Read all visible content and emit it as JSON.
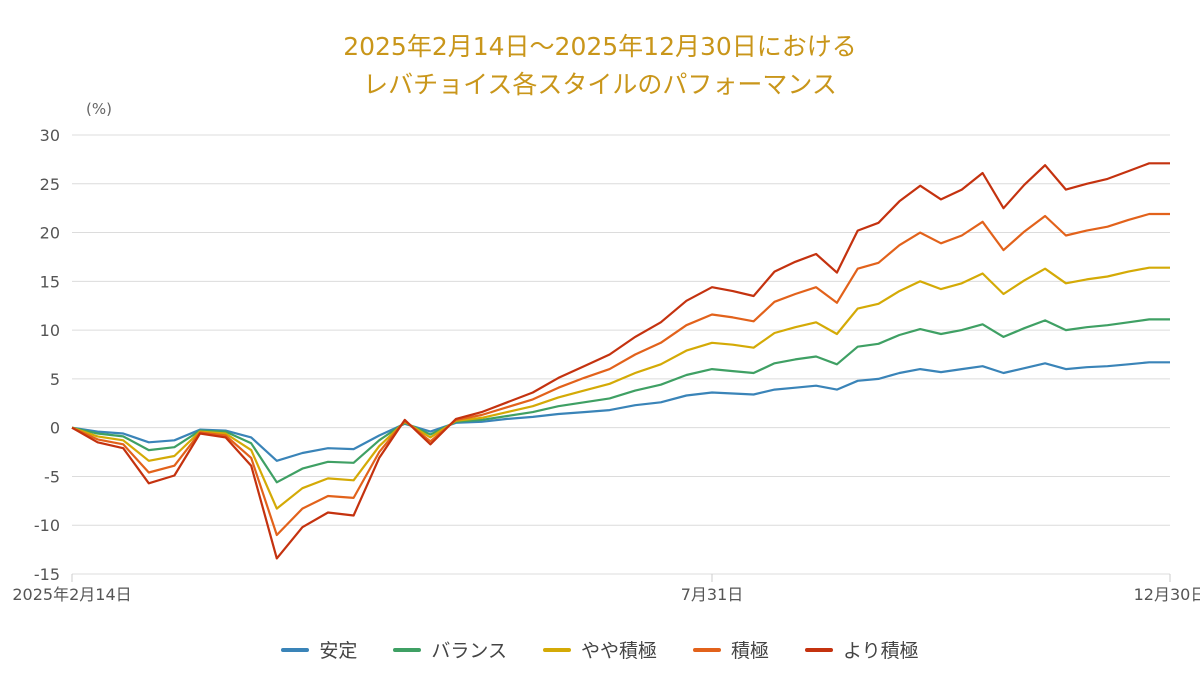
{
  "title": {
    "line1": "2025年2月14日〜2025年12月30日における",
    "line2": "レバチョイス各スタイルのパフォーマンス"
  },
  "chart_data": {
    "type": "line",
    "title": "2025年2月14日〜2025年12月30日における レバチョイス各スタイルのパフォーマンス",
    "xlabel": "",
    "ylabel": "(%)",
    "ylim": [
      -15,
      30
    ],
    "yticks": [
      30,
      25,
      20,
      15,
      10,
      5,
      0,
      -5,
      -10,
      -15
    ],
    "xticks": [
      "2025年2月14日",
      "7月31日",
      "12月30日"
    ],
    "grid": true,
    "legend_position": "bottom",
    "x": [
      "2/14",
      "2/24",
      "3/3",
      "3/10",
      "3/14",
      "3/21",
      "3/28",
      "4/4",
      "4/7",
      "4/9",
      "4/15",
      "4/22",
      "4/29",
      "5/6",
      "5/13",
      "5/20",
      "5/27",
      "6/3",
      "6/10",
      "6/17",
      "6/24",
      "7/1",
      "7/8",
      "7/15",
      "7/22",
      "7/31",
      "8/7",
      "8/14",
      "8/21",
      "8/28",
      "9/4",
      "9/11",
      "9/18",
      "9/25",
      "10/2",
      "10/9",
      "10/16",
      "10/23",
      "10/30",
      "11/6",
      "11/13",
      "11/20",
      "11/27",
      "12/4",
      "12/11",
      "12/18",
      "12/25",
      "12/30"
    ],
    "series": [
      {
        "name": "安定",
        "color": "#3a84b8",
        "values": [
          0,
          -0.4,
          -0.6,
          -1.5,
          -1.3,
          -0.2,
          -0.3,
          -1.0,
          -3.4,
          -2.6,
          -2.1,
          -2.2,
          -0.8,
          0.4,
          -0.4,
          0.5,
          0.6,
          0.9,
          1.1,
          1.4,
          1.6,
          1.8,
          2.3,
          2.6,
          3.3,
          3.6,
          3.5,
          3.4,
          3.9,
          4.1,
          4.3,
          3.9,
          4.8,
          5.0,
          5.6,
          6.0,
          5.7,
          6.0,
          6.3,
          5.6,
          6.1,
          6.6,
          6.0,
          6.2,
          6.3,
          6.5,
          6.7,
          6.7
        ]
      },
      {
        "name": "バランス",
        "color": "#3fa064",
        "values": [
          0,
          -0.6,
          -0.9,
          -2.3,
          -2.0,
          -0.3,
          -0.4,
          -1.6,
          -5.6,
          -4.2,
          -3.5,
          -3.6,
          -1.3,
          0.5,
          -0.7,
          0.6,
          0.8,
          1.2,
          1.6,
          2.2,
          2.6,
          3.0,
          3.8,
          4.4,
          5.4,
          6.0,
          5.8,
          5.6,
          6.6,
          7.0,
          7.3,
          6.5,
          8.3,
          8.6,
          9.5,
          10.1,
          9.6,
          10.0,
          10.6,
          9.3,
          10.2,
          11.0,
          10.0,
          10.3,
          10.5,
          10.8,
          11.1,
          11.1
        ]
      },
      {
        "name": "やや積極",
        "color": "#d4aa06",
        "values": [
          0,
          -0.9,
          -1.3,
          -3.4,
          -2.9,
          -0.4,
          -0.6,
          -2.3,
          -8.3,
          -6.2,
          -5.2,
          -5.4,
          -1.9,
          0.6,
          -1.0,
          0.7,
          1.0,
          1.6,
          2.2,
          3.1,
          3.8,
          4.5,
          5.6,
          6.5,
          7.9,
          8.7,
          8.5,
          8.2,
          9.7,
          10.3,
          10.8,
          9.6,
          12.2,
          12.7,
          14.0,
          15.0,
          14.2,
          14.8,
          15.8,
          13.7,
          15.1,
          16.3,
          14.8,
          15.2,
          15.5,
          16.0,
          16.4,
          16.4
        ]
      },
      {
        "name": "積極",
        "color": "#e2621b",
        "values": [
          0,
          -1.2,
          -1.7,
          -4.6,
          -3.9,
          -0.5,
          -0.8,
          -3.1,
          -11.0,
          -8.3,
          -7.0,
          -7.2,
          -2.5,
          0.7,
          -1.4,
          0.8,
          1.3,
          2.1,
          2.9,
          4.1,
          5.1,
          6.0,
          7.5,
          8.7,
          10.5,
          11.6,
          11.3,
          10.9,
          12.9,
          13.7,
          14.4,
          12.8,
          16.3,
          16.9,
          18.7,
          20.0,
          18.9,
          19.7,
          21.1,
          18.2,
          20.1,
          21.7,
          19.7,
          20.2,
          20.6,
          21.3,
          21.9,
          21.9
        ]
      },
      {
        "name": "より積極",
        "color": "#c4320f",
        "values": [
          0,
          -1.5,
          -2.1,
          -5.7,
          -4.9,
          -0.6,
          -1.0,
          -3.9,
          -13.4,
          -10.2,
          -8.7,
          -9.0,
          -3.1,
          0.8,
          -1.7,
          0.9,
          1.6,
          2.6,
          3.6,
          5.1,
          6.3,
          7.5,
          9.3,
          10.8,
          13.0,
          14.4,
          14.0,
          13.5,
          16.0,
          17.0,
          17.8,
          15.9,
          20.2,
          21.0,
          23.2,
          24.8,
          23.4,
          24.4,
          26.1,
          22.5,
          24.9,
          26.9,
          24.4,
          25.0,
          25.5,
          26.3,
          27.1,
          27.1
        ]
      }
    ]
  },
  "axis": {
    "unit": "(%)",
    "y_labels": [
      "30",
      "25",
      "20",
      "15",
      "10",
      "5",
      "0",
      "-5",
      "-10",
      "-15"
    ],
    "x_labels": [
      "2025年2月14日",
      "7月31日",
      "12月30日"
    ]
  },
  "legend": [
    {
      "label": "安定",
      "color": "#3a84b8"
    },
    {
      "label": "バランス",
      "color": "#3fa064"
    },
    {
      "label": "やや積極",
      "color": "#d4aa06"
    },
    {
      "label": "積極",
      "color": "#e2621b"
    },
    {
      "label": "より積極",
      "color": "#c4320f"
    }
  ]
}
